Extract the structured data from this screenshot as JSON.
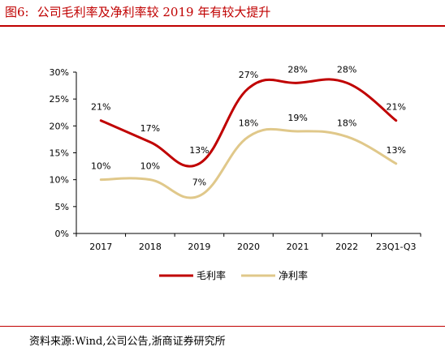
{
  "header": {
    "figure_label": "图6:",
    "title": "公司毛利率及净利率较 2019 年有较大提升"
  },
  "footer": {
    "source": "资料来源:Wind,公司公告,浙商证券研究所"
  },
  "chart_data": {
    "type": "line",
    "categories": [
      "2017",
      "2018",
      "2019",
      "2020",
      "2021",
      "2022",
      "23Q1-Q3"
    ],
    "series": [
      {
        "name": "毛利率",
        "values": [
          21,
          17,
          13,
          27,
          28,
          28,
          21
        ],
        "labels": [
          "21%",
          "17%",
          "13%",
          "27%",
          "28%",
          "28%",
          "21%"
        ],
        "color": "#c00000"
      },
      {
        "name": "净利率",
        "values": [
          10,
          10,
          7,
          18,
          19,
          18,
          13
        ],
        "labels": [
          "10%",
          "10%",
          "7%",
          "18%",
          "19%",
          "18%",
          "13%"
        ],
        "color": "#e0c88a"
      }
    ],
    "yticks": [
      "0%",
      "5%",
      "10%",
      "15%",
      "20%",
      "25%",
      "30%"
    ],
    "ylim": [
      0,
      30
    ],
    "smooth": true,
    "grid": false,
    "legend_position": "bottom"
  }
}
